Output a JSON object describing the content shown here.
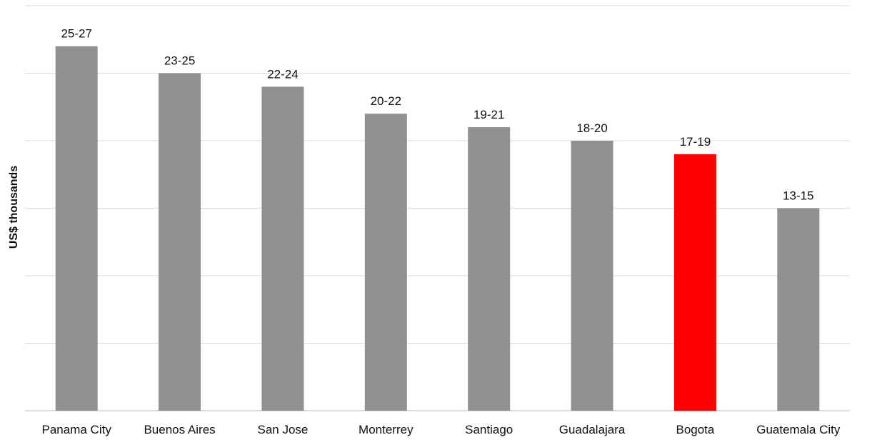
{
  "chart_data": {
    "type": "bar",
    "title": "",
    "xlabel": "",
    "ylabel": "US$ thousands",
    "categories": [
      "Panama City",
      "Buenos Aires",
      "San Jose",
      "Monterrey",
      "Santiago",
      "Guadalajara",
      "Bogota",
      "Guatemala City"
    ],
    "values": [
      27,
      25,
      24,
      22,
      21,
      20,
      19,
      15
    ],
    "data_labels": [
      "25-27",
      "23-25",
      "22-24",
      "20-22",
      "19-21",
      "18-20",
      "17-19",
      "13-15"
    ],
    "ylim": [
      0,
      30
    ],
    "grid": true,
    "y_tick_labels_shown": false,
    "legend": "none",
    "bar_color": "#909090",
    "highlight_color": "#ff0000",
    "highlight_category": "Bogota"
  }
}
